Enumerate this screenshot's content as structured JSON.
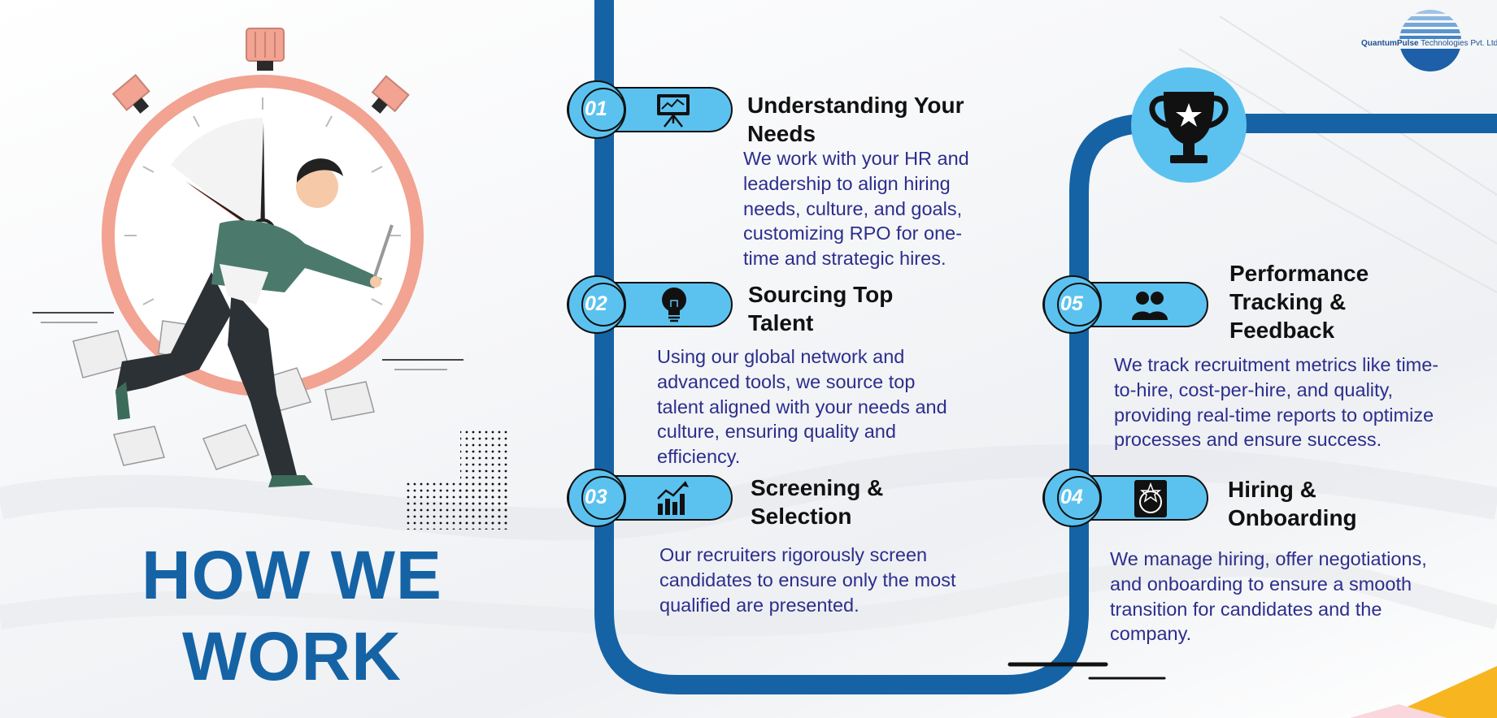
{
  "title": {
    "line1": "HOW WE",
    "line2": "WORK"
  },
  "logo": {
    "brand": "QuantumPulse",
    "rest": " Technologies Pvt. Ltd"
  },
  "colors": {
    "accent": "#1563a5",
    "pill": "#5bc2f0",
    "text": "#2c2e8c"
  },
  "steps": [
    {
      "number": "01",
      "icon": "presentation-board-icon",
      "heading1": "Understanding Your",
      "heading2": "Needs",
      "lines": [
        "We work with your HR and",
        "leadership to align hiring",
        "needs, culture, and goals,",
        "customizing RPO for one-",
        "time and strategic hires."
      ]
    },
    {
      "number": "02",
      "icon": "lightbulb-icon",
      "heading1": "Sourcing Top",
      "heading2": "Talent",
      "lines": [
        "Using our global network and",
        "advanced tools, we source top",
        "talent aligned with your needs and",
        "culture, ensuring quality and",
        "efficiency."
      ]
    },
    {
      "number": "03",
      "icon": "growth-chart-icon",
      "heading1": "Screening &",
      "heading2": "Selection",
      "lines": [
        "Our recruiters rigorously screen",
        "candidates to ensure only the most",
        "qualified are presented."
      ]
    },
    {
      "number": "04",
      "icon": "medal-icon",
      "heading1": "Hiring &",
      "heading2": "Onboarding",
      "lines": [
        "We manage hiring, offer negotiations,",
        "and onboarding to ensure a smooth",
        "transition for candidates and the",
        "company."
      ]
    },
    {
      "number": "05",
      "icon": "team-icon",
      "heading1": "Performance",
      "heading2": "Tracking &",
      "heading3": "Feedback",
      "lines": [
        "We track recruitment metrics like time-",
        "to-hire, cost-per-hire, and quality,",
        "providing real-time reports to optimize",
        "processes and ensure success."
      ]
    }
  ]
}
